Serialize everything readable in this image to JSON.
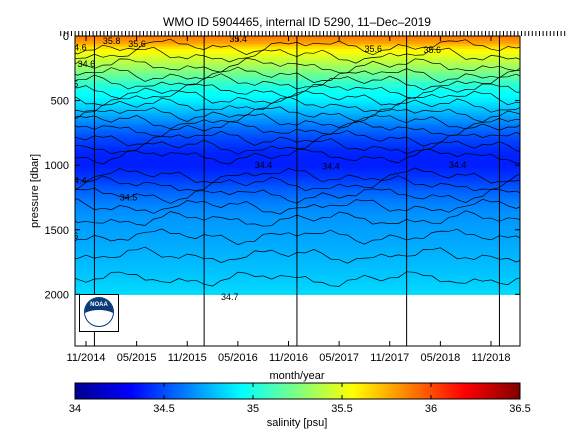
{
  "chart_data": {
    "type": "heatmap",
    "title": "WMO ID 5904465, internal ID 5290, 11–Dec–2019",
    "xlabel": "month/year",
    "ylabel": "pressure [dbar]",
    "colorbar_label": "salinity [psu]",
    "x_ticks": [
      "11/2014",
      "05/2015",
      "11/2015",
      "05/2016",
      "11/2016",
      "05/2017",
      "11/2017",
      "05/2018",
      "11/2018"
    ],
    "y_ticks": [
      0,
      500,
      1000,
      1500,
      2000
    ],
    "ylim": [
      0,
      2400
    ],
    "y_reversed": true,
    "colorbar_ticks": [
      34,
      34.5,
      35,
      35.5,
      36,
      36.5
    ],
    "clim": [
      34,
      36.5
    ],
    "colormap": "jet",
    "data_range_x": [
      "08/2014",
      "08/2019"
    ],
    "data_depth_max": 2000,
    "vertical_markers": [
      "12/2014",
      "01/2016",
      "12/2016",
      "01/2018",
      "12/2018"
    ],
    "salinity_profile": [
      {
        "pressure": 0,
        "salinity": 35.9
      },
      {
        "pressure": 50,
        "salinity": 35.8
      },
      {
        "pressure": 100,
        "salinity": 35.6
      },
      {
        "pressure": 200,
        "salinity": 35.4
      },
      {
        "pressure": 300,
        "salinity": 35.2
      },
      {
        "pressure": 400,
        "salinity": 35.0
      },
      {
        "pressure": 500,
        "salinity": 34.9
      },
      {
        "pressure": 600,
        "salinity": 34.75
      },
      {
        "pressure": 700,
        "salinity": 34.6
      },
      {
        "pressure": 800,
        "salinity": 34.48
      },
      {
        "pressure": 900,
        "salinity": 34.4
      },
      {
        "pressure": 1000,
        "salinity": 34.38
      },
      {
        "pressure": 1100,
        "salinity": 34.45
      },
      {
        "pressure": 1200,
        "salinity": 34.55
      },
      {
        "pressure": 1300,
        "salinity": 34.63
      },
      {
        "pressure": 1400,
        "salinity": 34.68
      },
      {
        "pressure": 1600,
        "salinity": 34.73
      },
      {
        "pressure": 1800,
        "salinity": 34.78
      },
      {
        "pressure": 2000,
        "salinity": 34.85
      }
    ],
    "contour_labels": [
      {
        "text": "35.6",
        "x": "04/2015",
        "pressure": 60
      },
      {
        "text": "35.8",
        "x": "01/2015",
        "pressure": 40
      },
      {
        "text": "35.4",
        "x": "04/2016",
        "pressure": 25
      },
      {
        "text": "35.6",
        "x": "08/2017",
        "pressure": 100
      },
      {
        "text": "35.6",
        "x": "03/2018",
        "pressure": 110
      },
      {
        "text": "35.4",
        "x": "07/2019",
        "pressure": 40
      },
      {
        "text": "34.4",
        "x": "09/2014",
        "pressure": 1120
      },
      {
        "text": "34.4",
        "x": "07/2016",
        "pressure": 1000
      },
      {
        "text": "34.4",
        "x": "03/2017",
        "pressure": 1010
      },
      {
        "text": "34.4",
        "x": "06/2018",
        "pressure": 1000
      },
      {
        "text": "34.5",
        "x": "03/2015",
        "pressure": 1250
      },
      {
        "text": "34.6",
        "x": "08/2014",
        "pressure": 1550
      },
      {
        "text": "34.5",
        "x": "08/2014",
        "pressure": 370
      },
      {
        "text": "34.7",
        "x": "03/2016",
        "pressure": 2020
      },
      {
        "text": "34.7",
        "x": "07/2019",
        "pressure": 2030
      },
      {
        "text": "34.6",
        "x": "09/2014",
        "pressure": 90
      },
      {
        "text": "34.6",
        "x": "10/2014",
        "pressure": 215
      }
    ]
  },
  "logo": {
    "icon": "noaa-logo-icon",
    "text": "NOAA"
  }
}
